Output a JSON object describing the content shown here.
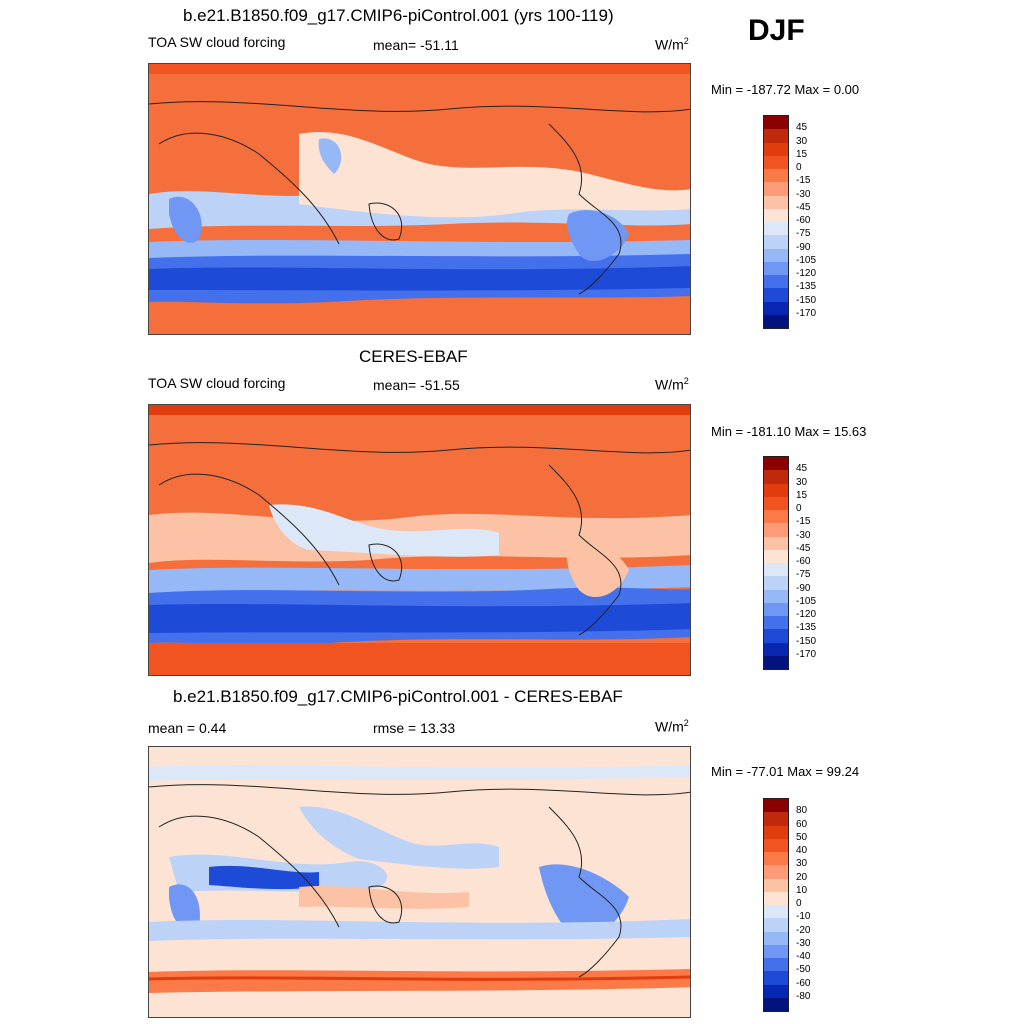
{
  "season": "DJF",
  "panels": [
    {
      "title": "b.e21.B1850.f09_g17.CMIP6-piControl.001 (yrs 100-119)",
      "left_label": "TOA SW cloud forcing",
      "center_label": "mean= -51.11",
      "units": "W/m",
      "units_sup": "2",
      "minmax": "Min = -187.72 Max =    0.00",
      "levels": [
        "45",
        "30",
        "15",
        "0",
        "-15",
        "-30",
        "-45",
        "-60",
        "-75",
        "-90",
        "-105",
        "-120",
        "-135",
        "-150",
        "-170"
      ],
      "colors": [
        "#8b0000",
        "#c0290c",
        "#e03c0e",
        "#f25421",
        "#fb7a47",
        "#fc9b75",
        "#fcc2a5",
        "#fde3d4",
        "#dce8f7",
        "#bcd2f7",
        "#97b8f7",
        "#6f97f3",
        "#4470ec",
        "#1e4ad8",
        "#0727b3",
        "#02137f"
      ]
    },
    {
      "title": "CERES-EBAF",
      "left_label": "TOA SW cloud forcing",
      "center_label": "mean= -51.55",
      "units": "W/m",
      "units_sup": "2",
      "minmax": "Min = -181.10 Max =  15.63",
      "levels": [
        "45",
        "30",
        "15",
        "0",
        "-15",
        "-30",
        "-45",
        "-60",
        "-75",
        "-90",
        "-105",
        "-120",
        "-135",
        "-150",
        "-170"
      ],
      "colors": [
        "#8b0000",
        "#c0290c",
        "#e03c0e",
        "#f25421",
        "#fb7a47",
        "#fc9b75",
        "#fcc2a5",
        "#fde3d4",
        "#dce8f7",
        "#bcd2f7",
        "#97b8f7",
        "#6f97f3",
        "#4470ec",
        "#1e4ad8",
        "#0727b3",
        "#02137f"
      ]
    },
    {
      "title": "b.e21.B1850.f09_g17.CMIP6-piControl.001 - CERES-EBAF",
      "left_label": "mean =   0.44",
      "center_label": "rmse =  13.33",
      "units": "W/m",
      "units_sup": "2",
      "minmax": "Min = -77.01 Max =  99.24",
      "levels": [
        "80",
        "60",
        "50",
        "40",
        "30",
        "20",
        "10",
        "0",
        "-10",
        "-20",
        "-30",
        "-40",
        "-50",
        "-60",
        "-80"
      ],
      "colors": [
        "#8b0000",
        "#c0290c",
        "#e03c0e",
        "#f25421",
        "#fb7a47",
        "#fc9b75",
        "#fcc2a5",
        "#fde3d4",
        "#dce8f7",
        "#bcd2f7",
        "#97b8f7",
        "#6f97f3",
        "#4470ec",
        "#1e4ad8",
        "#0727b3",
        "#02137f"
      ]
    }
  ]
}
